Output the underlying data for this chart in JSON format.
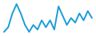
{
  "values": [
    1,
    3,
    9,
    13,
    9,
    4,
    1,
    4,
    2,
    6,
    3,
    6,
    2,
    12,
    8,
    4,
    7,
    5,
    9,
    6,
    10,
    7
  ],
  "line_color": "#1b9dd9",
  "background_color": "#ffffff",
  "linewidth": 1.4
}
